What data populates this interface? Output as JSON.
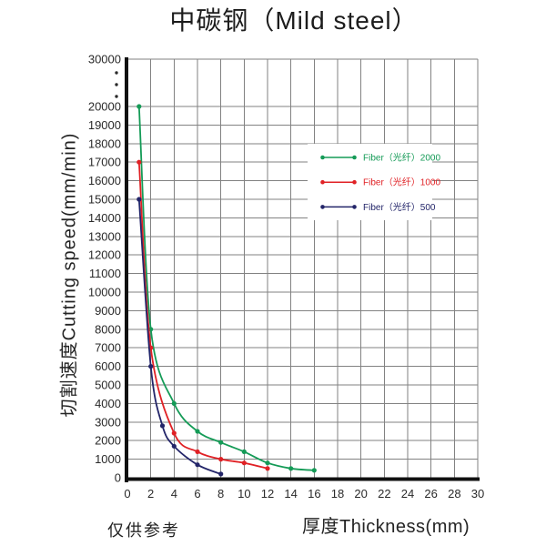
{
  "title": "中碳钢（Mild steel）",
  "footnote": "仅供参考",
  "chart_data": {
    "type": "line",
    "title": "中碳钢（Mild steel）",
    "xlabel": "厚度Thickness(mm)",
    "ylabel": "切割速度Cutting speed(mm/min)",
    "x_ticks": [
      0,
      2,
      4,
      6,
      8,
      10,
      12,
      14,
      16,
      18,
      20,
      22,
      24,
      26,
      28,
      30
    ],
    "y_ticks": [
      0,
      1000,
      2000,
      3000,
      4000,
      5000,
      6000,
      7000,
      8000,
      9000,
      10000,
      11000,
      12000,
      13000,
      14000,
      15000,
      16000,
      17000,
      18000,
      19000,
      20000
    ],
    "y_axis_break": {
      "after": 20000,
      "top_tick": 30000
    },
    "xlim": [
      0,
      30
    ],
    "ylim": [
      0,
      20000
    ],
    "grid": true,
    "grid_color": "#828282",
    "axis_color": "#101010",
    "legend_position": "inside-upper-right",
    "series": [
      {
        "name": "Fiber（光纤）2000",
        "color": "#159b57",
        "points": [
          [
            1,
            20000
          ],
          [
            2,
            8000
          ],
          [
            4,
            4000
          ],
          [
            6,
            2500
          ],
          [
            8,
            1900
          ],
          [
            10,
            1400
          ],
          [
            12,
            800
          ],
          [
            14,
            500
          ],
          [
            16,
            400
          ]
        ]
      },
      {
        "name": "Fiber（光纤）1000",
        "color": "#e02125",
        "points": [
          [
            1,
            17000
          ],
          [
            2,
            7000
          ],
          [
            4,
            2400
          ],
          [
            6,
            1400
          ],
          [
            8,
            1000
          ],
          [
            10,
            800
          ],
          [
            12,
            500
          ]
        ]
      },
      {
        "name": "Fiber（光纤）500",
        "color": "#232569",
        "points": [
          [
            1,
            15000
          ],
          [
            2,
            6000
          ],
          [
            3,
            2800
          ],
          [
            4,
            1700
          ],
          [
            6,
            700
          ],
          [
            8,
            200
          ]
        ]
      }
    ]
  }
}
